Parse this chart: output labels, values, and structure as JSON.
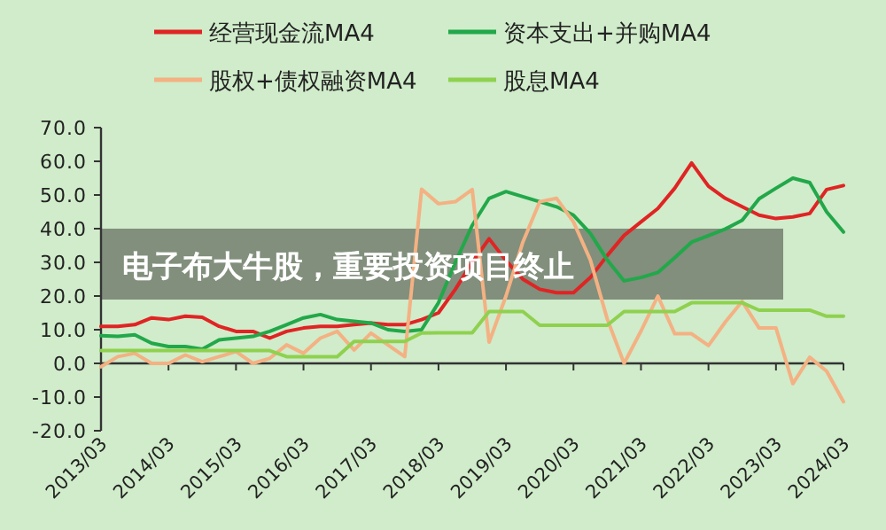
{
  "chart_data": {
    "type": "line",
    "title": "电子布大牛股，重要投资项目终止",
    "legend": "top",
    "marker": "none",
    "line_style": "solid",
    "categories": [
      "2013/03",
      null,
      null,
      null,
      "2014/03",
      null,
      null,
      null,
      "2015/03",
      null,
      null,
      null,
      "2016/03",
      null,
      null,
      null,
      "2017/03",
      null,
      null,
      null,
      "2018/03",
      null,
      null,
      null,
      "2019/03",
      null,
      null,
      null,
      "2020/03",
      null,
      null,
      null,
      "2021/03",
      null,
      null,
      null,
      "2022/03",
      null,
      null,
      null,
      "2023/03",
      null,
      null,
      null,
      "2024/03"
    ],
    "ylim": [
      -20,
      70
    ],
    "yticks": [
      {
        "value": -20,
        "label": "-20.0"
      },
      {
        "value": -10,
        "label": "-10.0"
      },
      {
        "value": 0,
        "label": "0.0"
      },
      {
        "value": 10,
        "label": "10.0"
      },
      {
        "value": 20,
        "label": "20.0"
      },
      {
        "value": 30,
        "label": "30.0"
      },
      {
        "value": 40,
        "label": "40.0"
      },
      {
        "value": 50,
        "label": "50.0"
      },
      {
        "value": 60,
        "label": "60.0"
      },
      {
        "value": 70,
        "label": "70.0"
      }
    ],
    "series": [
      {
        "name": "经营现金流MA4",
        "color": "#e02424",
        "values": [
          11,
          11,
          11.5,
          13.5,
          13,
          14,
          13.7,
          11,
          9.5,
          9.5,
          7.5,
          9.5,
          10.5,
          11,
          11,
          11.5,
          12,
          11.5,
          11.5,
          13,
          15,
          22,
          30,
          37,
          30.5,
          25,
          22,
          21,
          21,
          25.5,
          32,
          38,
          42,
          46,
          52,
          59.5,
          52.6,
          49,
          46.5,
          44,
          43,
          43.5,
          44.5,
          51.6,
          52.8
        ]
      },
      {
        "name": "资本支出+并购MA4",
        "color": "#22a84a",
        "values": [
          8.2,
          8,
          8.5,
          6,
          5,
          5,
          4.2,
          7,
          7.5,
          8,
          9.5,
          11.5,
          13.5,
          14.5,
          13,
          12.5,
          12,
          10,
          9.5,
          10,
          18,
          30,
          41,
          49,
          51,
          49.5,
          48,
          46.5,
          44,
          38.6,
          30.7,
          24.5,
          25.5,
          27,
          31.4,
          36,
          37.9,
          39.9,
          42.5,
          48.9,
          52,
          55,
          53.7,
          45,
          39
        ]
      },
      {
        "name": "股权+债权融资MA4",
        "color": "#f4b183",
        "values": [
          -1,
          2,
          3,
          0,
          0,
          2.5,
          0.5,
          2,
          3.5,
          0,
          1.5,
          5.5,
          3,
          7.5,
          9.5,
          4,
          9,
          5.5,
          2,
          51.7,
          47.4,
          48,
          51.6,
          6.3,
          20,
          36,
          48,
          49,
          42,
          30.7,
          13.2,
          0,
          9.6,
          20,
          8.8,
          8.8,
          5.3,
          12.3,
          18.4,
          10.5,
          10.5,
          -6,
          1.8,
          -2.3,
          -11.4
        ]
      },
      {
        "name": "股息MA4",
        "color": "#8fd14f",
        "values": [
          3.8,
          3.8,
          3.8,
          3.8,
          3.8,
          3.8,
          3.8,
          3.8,
          3.8,
          3.8,
          3.8,
          2,
          2,
          2,
          2,
          6.5,
          6.5,
          6.5,
          6.5,
          9,
          9.1,
          9.1,
          9.1,
          15.4,
          15.4,
          15.4,
          11.3,
          11.3,
          11.3,
          11.3,
          11.3,
          15.4,
          15.4,
          15.4,
          15.4,
          18,
          18,
          18,
          18,
          15.8,
          15.8,
          15.8,
          15.8,
          14,
          14
        ]
      }
    ]
  }
}
